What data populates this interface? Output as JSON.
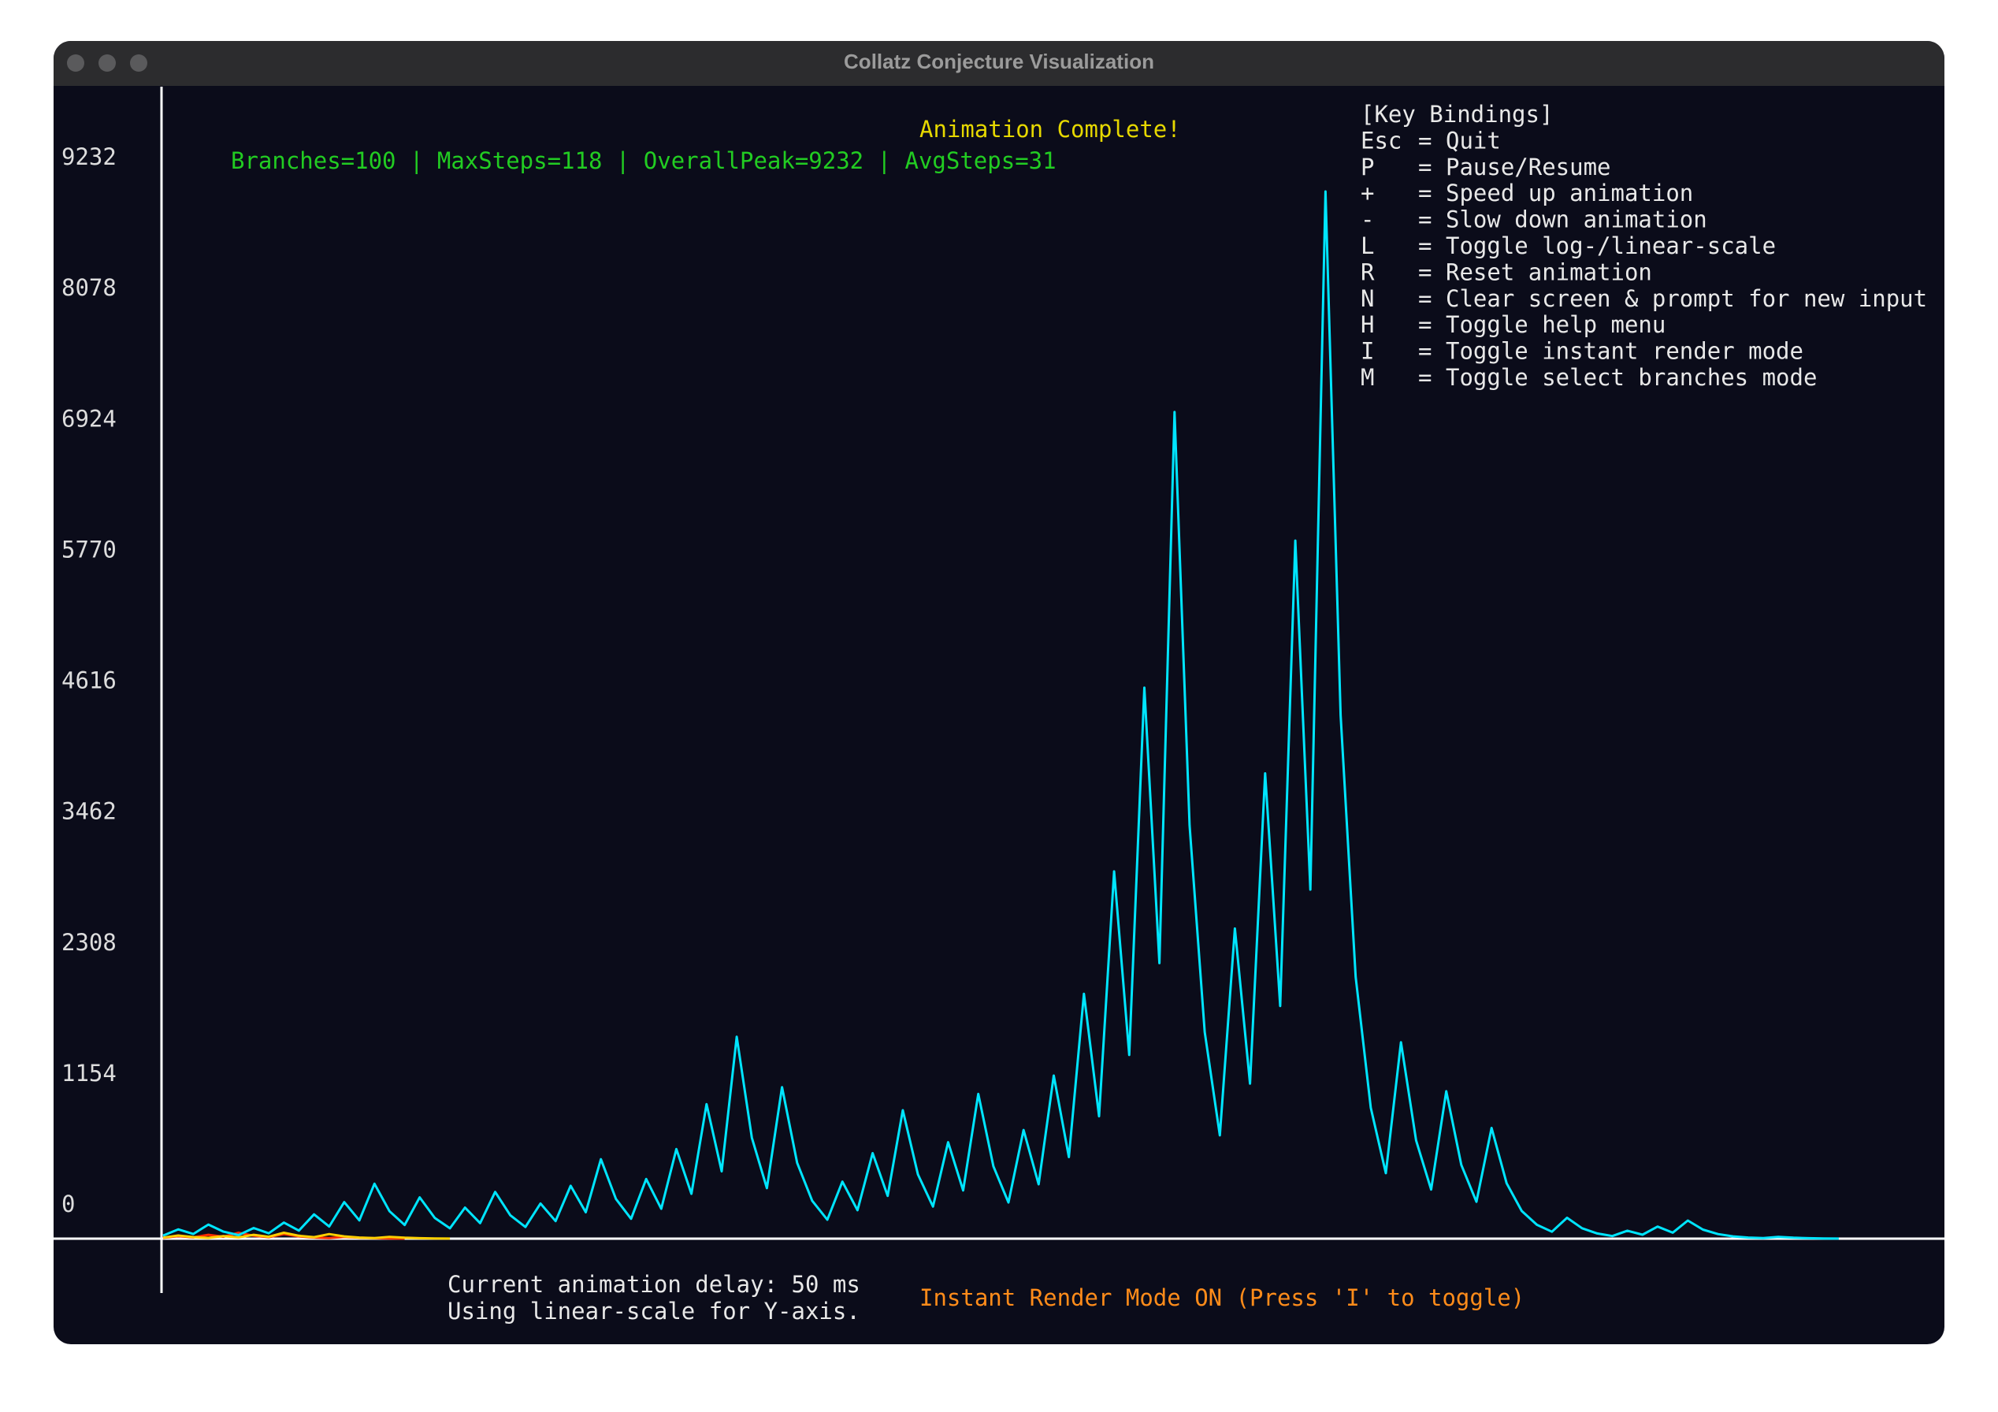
{
  "window_title": "Collatz Conjecture Visualization",
  "status": {
    "stats": "Branches=100 | MaxSteps=118 | OverallPeak=9232 | AvgSteps=31",
    "animation": "Animation Complete!",
    "delay": "Current animation delay: 50 ms",
    "scale": "Using linear-scale for Y-axis.",
    "render_mode": "Instant Render Mode ON (Press 'I' to toggle)"
  },
  "key_bindings": {
    "title": "[Key Bindings]",
    "separator": "=",
    "rows": [
      [
        "Esc",
        "Quit"
      ],
      [
        "P",
        "Pause/Resume"
      ],
      [
        "+",
        "Speed up animation"
      ],
      [
        "-",
        "Slow down animation"
      ],
      [
        "L",
        "Toggle log-/linear-scale"
      ],
      [
        "R",
        "Reset animation"
      ],
      [
        "N",
        "Clear screen & prompt for new input"
      ],
      [
        "H",
        "Toggle help menu"
      ],
      [
        "I",
        "Toggle instant render mode"
      ],
      [
        "M",
        "Toggle select branches mode"
      ]
    ]
  },
  "chart_data": {
    "type": "line",
    "ylim": [
      0,
      9232
    ],
    "yticks": [
      0,
      1154,
      2308,
      3462,
      4616,
      5770,
      6924,
      8078,
      9232
    ],
    "xlim": [
      0,
      118
    ],
    "series": [
      {
        "color": "#ff2a00",
        "values": [
          7,
          22,
          11,
          34,
          17,
          52,
          26,
          13,
          40,
          20,
          10,
          5,
          16,
          8,
          4,
          2,
          1
        ]
      },
      {
        "color": "#ffd000",
        "values": [
          9,
          28,
          14,
          7,
          22,
          11,
          34,
          17,
          52,
          26,
          13,
          40,
          20,
          10,
          5,
          16,
          8,
          4,
          2,
          1
        ]
      },
      {
        "color": "#00e5ff",
        "values": [
          27,
          82,
          41,
          124,
          62,
          31,
          94,
          47,
          142,
          71,
          214,
          107,
          322,
          161,
          484,
          242,
          121,
          364,
          182,
          91,
          274,
          137,
          412,
          206,
          103,
          310,
          155,
          466,
          233,
          700,
          350,
          175,
          526,
          263,
          790,
          395,
          1186,
          593,
          1780,
          890,
          445,
          1336,
          668,
          334,
          167,
          502,
          251,
          754,
          377,
          1132,
          566,
          283,
          850,
          425,
          1276,
          638,
          319,
          958,
          479,
          1438,
          719,
          2158,
          1079,
          3238,
          1619,
          4858,
          2429,
          7288,
          3644,
          1822,
          911,
          2734,
          1367,
          4102,
          2051,
          6154,
          3077,
          9232,
          4616,
          2308,
          1154,
          577,
          1732,
          866,
          433,
          1300,
          650,
          325,
          976,
          488,
          244,
          122,
          61,
          184,
          92,
          46,
          23,
          70,
          35,
          106,
          53,
          160,
          80,
          40,
          20,
          10,
          5,
          16,
          8,
          4,
          2,
          1
        ]
      }
    ]
  }
}
